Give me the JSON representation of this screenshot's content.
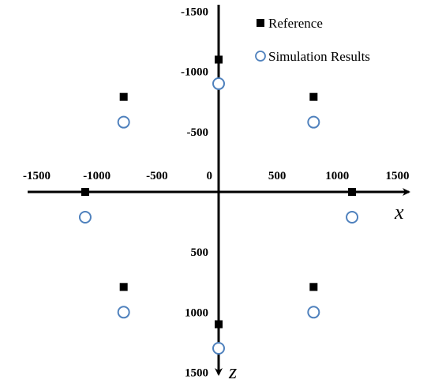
{
  "chart_data": {
    "type": "scatter",
    "xlabel": "x",
    "ylabel": "z",
    "xlim": [
      -1500,
      1500
    ],
    "ylim": [
      -1500,
      1500
    ],
    "y_axis_direction": "down",
    "grid": false,
    "legend_position": "top-right",
    "x_ticks": [
      {
        "value": -1500,
        "label": "-1500"
      },
      {
        "value": -1000,
        "label": "-1000"
      },
      {
        "value": -500,
        "label": "-500"
      },
      {
        "value": 0,
        "label": "0"
      },
      {
        "value": 500,
        "label": "500"
      },
      {
        "value": 1000,
        "label": "1000"
      },
      {
        "value": 1500,
        "label": "1500"
      }
    ],
    "y_ticks": [
      {
        "value": -1500,
        "label": "-1500"
      },
      {
        "value": -1000,
        "label": "-1000"
      },
      {
        "value": -500,
        "label": "-500"
      },
      {
        "value": 500,
        "label": "500"
      },
      {
        "value": 1000,
        "label": "1000"
      },
      {
        "value": 1500,
        "label": "1500"
      }
    ],
    "series": [
      {
        "name": "Reference",
        "marker": "filled-square",
        "color": "#000000",
        "points": [
          {
            "x": 0,
            "y": -1100
          },
          {
            "x": -790,
            "y": -790
          },
          {
            "x": 790,
            "y": -790
          },
          {
            "x": -1110,
            "y": 0
          },
          {
            "x": 1110,
            "y": 0
          },
          {
            "x": -790,
            "y": 790
          },
          {
            "x": 790,
            "y": 790
          },
          {
            "x": 0,
            "y": 1100
          }
        ]
      },
      {
        "name": "Simulation Results",
        "marker": "open-circle",
        "color": "#4f81bd",
        "points": [
          {
            "x": 0,
            "y": -900
          },
          {
            "x": -790,
            "y": -580
          },
          {
            "x": 790,
            "y": -580
          },
          {
            "x": -1110,
            "y": 210
          },
          {
            "x": 1110,
            "y": 210
          },
          {
            "x": -790,
            "y": 1000
          },
          {
            "x": 790,
            "y": 1000
          },
          {
            "x": 0,
            "y": 1300
          }
        ]
      }
    ]
  }
}
